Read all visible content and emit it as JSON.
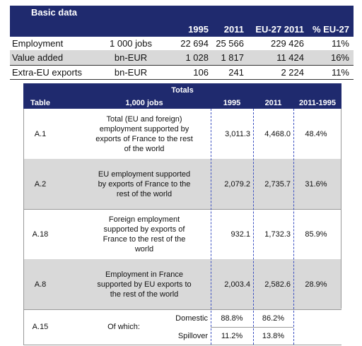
{
  "basic": {
    "title": "Basic data",
    "columns": [
      "1995",
      "2011",
      "EU-27 2011",
      "% EU-27"
    ],
    "rows": [
      [
        "Employment",
        "1 000 jobs",
        "22 694",
        "25 566",
        "229 426",
        "11%"
      ],
      [
        "Value added",
        "bn-EUR",
        "1 028",
        "1 817",
        "11 424",
        "16%"
      ],
      [
        "Extra-EU exports",
        "bn-EUR",
        "106",
        "241",
        "2 224",
        "11%"
      ]
    ]
  },
  "totals": {
    "title": "Totals",
    "columns": [
      "Table",
      "1,000 jobs",
      "1995",
      "2011",
      "2011-1995"
    ],
    "rows": [
      [
        "A.1",
        "Total (EU and foreign) employment supported by exports of France to the rest of the world",
        "3,011.3",
        "4,468.0",
        "48.4%"
      ],
      [
        "A.2",
        "EU employment supported by exports of France to the rest of the world",
        "2,079.2",
        "2,735.7",
        "31.6%"
      ],
      [
        "A.18",
        "Foreign employment supported by exports of France to the rest of the world",
        "932.1",
        "1,732.3",
        "85.9%"
      ],
      [
        "A.8",
        "Employment in France supported by EU exports to the rest of the world",
        "2,003.4",
        "2,582.6",
        "28.9%"
      ]
    ],
    "breakdown": {
      "table": "A.15",
      "label": "Of which:",
      "rows": [
        [
          "Domestic",
          "88.8%",
          "86.2%"
        ],
        [
          "Spillover",
          "11.2%",
          "13.8%"
        ]
      ]
    }
  }
}
